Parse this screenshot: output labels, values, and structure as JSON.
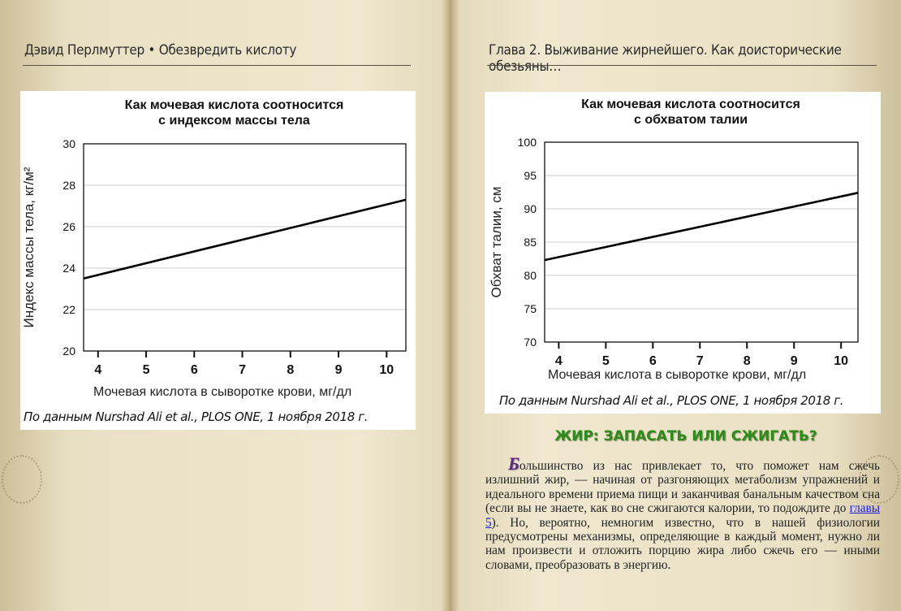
{
  "header": {
    "left": "Дэвид Перлмуттер • Обезвредить кислоту",
    "right": "Глава 2. Выживание жирнейшего. Как доисторические обезьяны…"
  },
  "chart_data": [
    {
      "type": "line",
      "title": "Как мочевая кислота соотносится с индексом массы тела",
      "title_lines": [
        "Как мочевая кислота соотносится",
        "с индексом массы тела"
      ],
      "xlabel": "Мочевая кислота в сыворотке крови, мг/дл",
      "ylabel": "Индекс массы тела, кг/м²",
      "xlim": [
        3.7,
        10.4
      ],
      "ylim": [
        20,
        30
      ],
      "xticks": [
        4,
        5,
        6,
        7,
        8,
        9,
        10
      ],
      "yticks": [
        20,
        22,
        24,
        26,
        28,
        30
      ],
      "grid": true,
      "x": [
        3.7,
        10.4
      ],
      "y": [
        23.5,
        27.3
      ],
      "source": "По данным Nurshad Ali et al., PLOS ONE, 1 ноября 2018 г."
    },
    {
      "type": "line",
      "title": "Как мочевая кислота соотносится с обхватом талии",
      "title_lines": [
        "Как мочевая кислота соотносится",
        "с обхватом талии"
      ],
      "xlabel": "Мочевая кислота в сыворотке крови, мг/дл",
      "ylabel": "Обхват талии, см",
      "xlim": [
        3.7,
        10.36
      ],
      "ylim": [
        70,
        100
      ],
      "xticks": [
        4,
        5,
        6,
        7,
        8,
        9,
        10
      ],
      "yticks": [
        70,
        75,
        80,
        85,
        90,
        95,
        100
      ],
      "grid": true,
      "x": [
        3.7,
        10.36
      ],
      "y": [
        82.3,
        92.4
      ],
      "source": "По данным Nurshad Ali et al., PLOS ONE, 1 ноября 2018 г."
    }
  ],
  "section": {
    "heading": "ЖИР: ЗАПАСАТЬ ИЛИ СЖИГАТЬ?",
    "drop_cap": "Б",
    "text_before_link": "ольшинство из нас привлекает то, что поможет нам сжечь излишний жир, — начиная от разгоняющих метаболизм упражнений и идеального времени приема пищи и заканчивая банальным качеством сна (если вы не знаете, как во сне сжигаются калории, то подождите до ",
    "link": "главы 5",
    "text_after_link": "). Но, вероятно, немногим известно, что в нашей физиологии предусмотрены механизмы, определяющие в каждый момент, нужно ли нам произвести и отложить порцию жира либо сжечь его — иными словами, преобразовать в энергию."
  }
}
